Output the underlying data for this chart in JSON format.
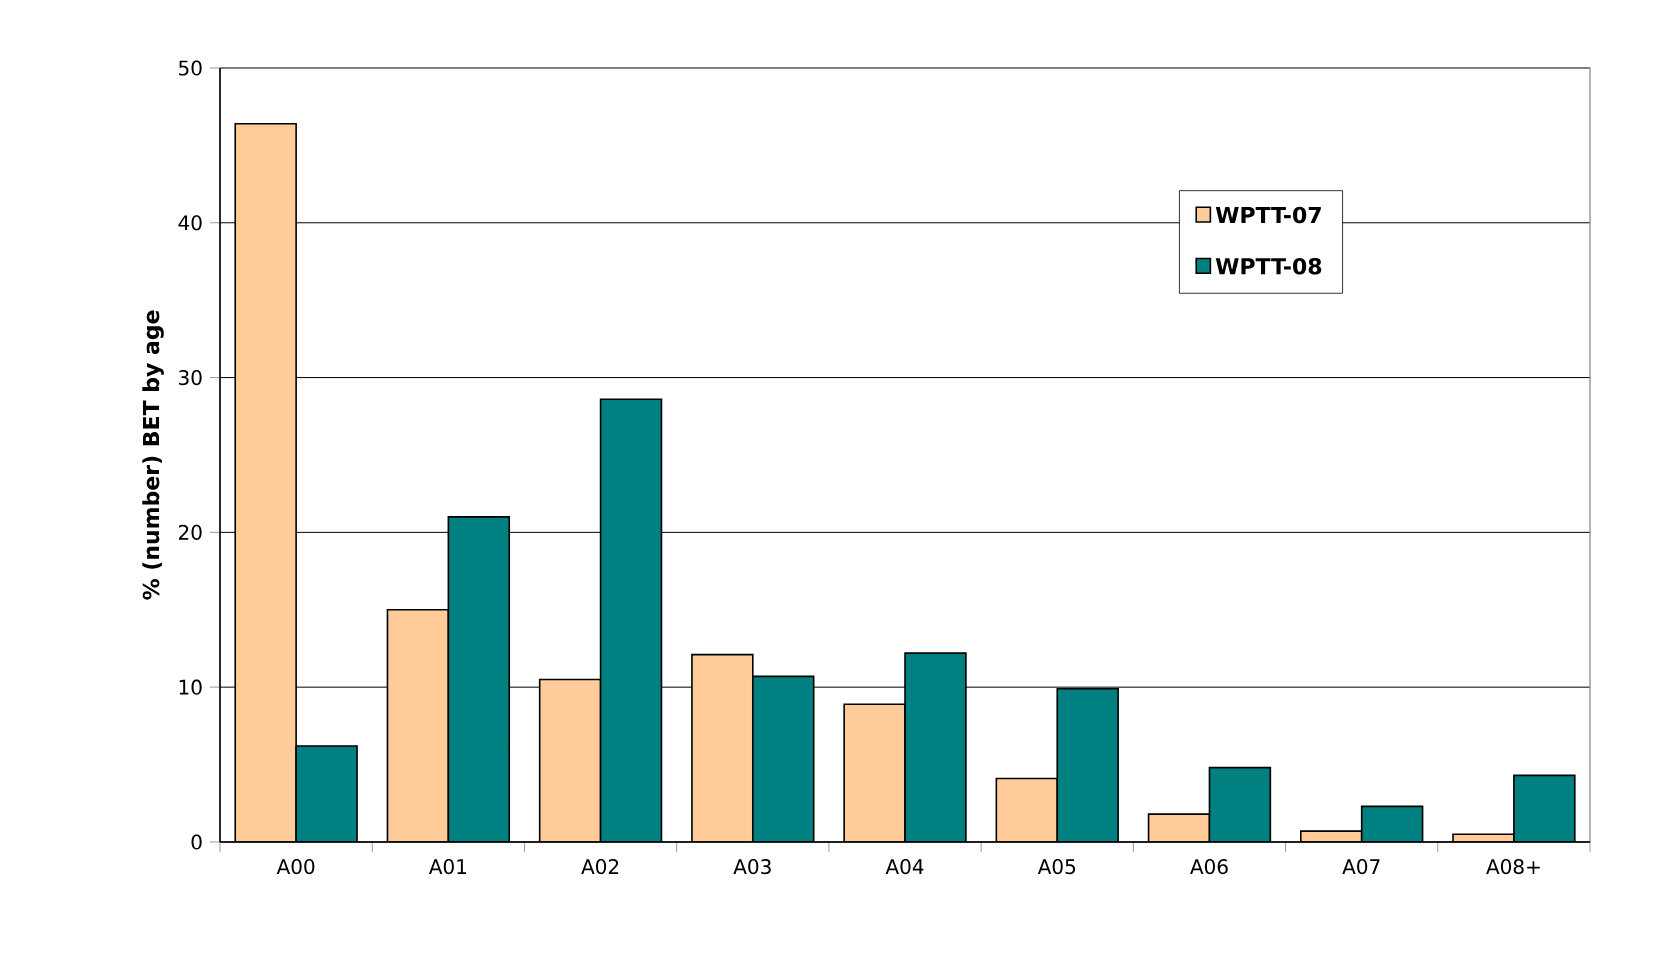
{
  "chart_data": {
    "type": "bar",
    "ylabel": "% (number) BET by age",
    "categories": [
      "A00",
      "A01",
      "A02",
      "A03",
      "A04",
      "A05",
      "A06",
      "A07",
      "A08+"
    ],
    "series": [
      {
        "name": "WPTT-07",
        "color": "#ffcc99",
        "values": [
          46.4,
          15.0,
          10.5,
          12.1,
          8.9,
          4.1,
          1.8,
          0.7,
          0.5
        ]
      },
      {
        "name": "WPTT-08",
        "color": "#008080",
        "values": [
          6.2,
          21.0,
          28.6,
          10.7,
          12.2,
          9.9,
          4.8,
          2.3,
          4.3
        ]
      }
    ],
    "ylim": [
      0,
      50
    ],
    "yticks": [
      0,
      10,
      20,
      30,
      40,
      50
    ],
    "grid": "y",
    "legend": "top right"
  }
}
